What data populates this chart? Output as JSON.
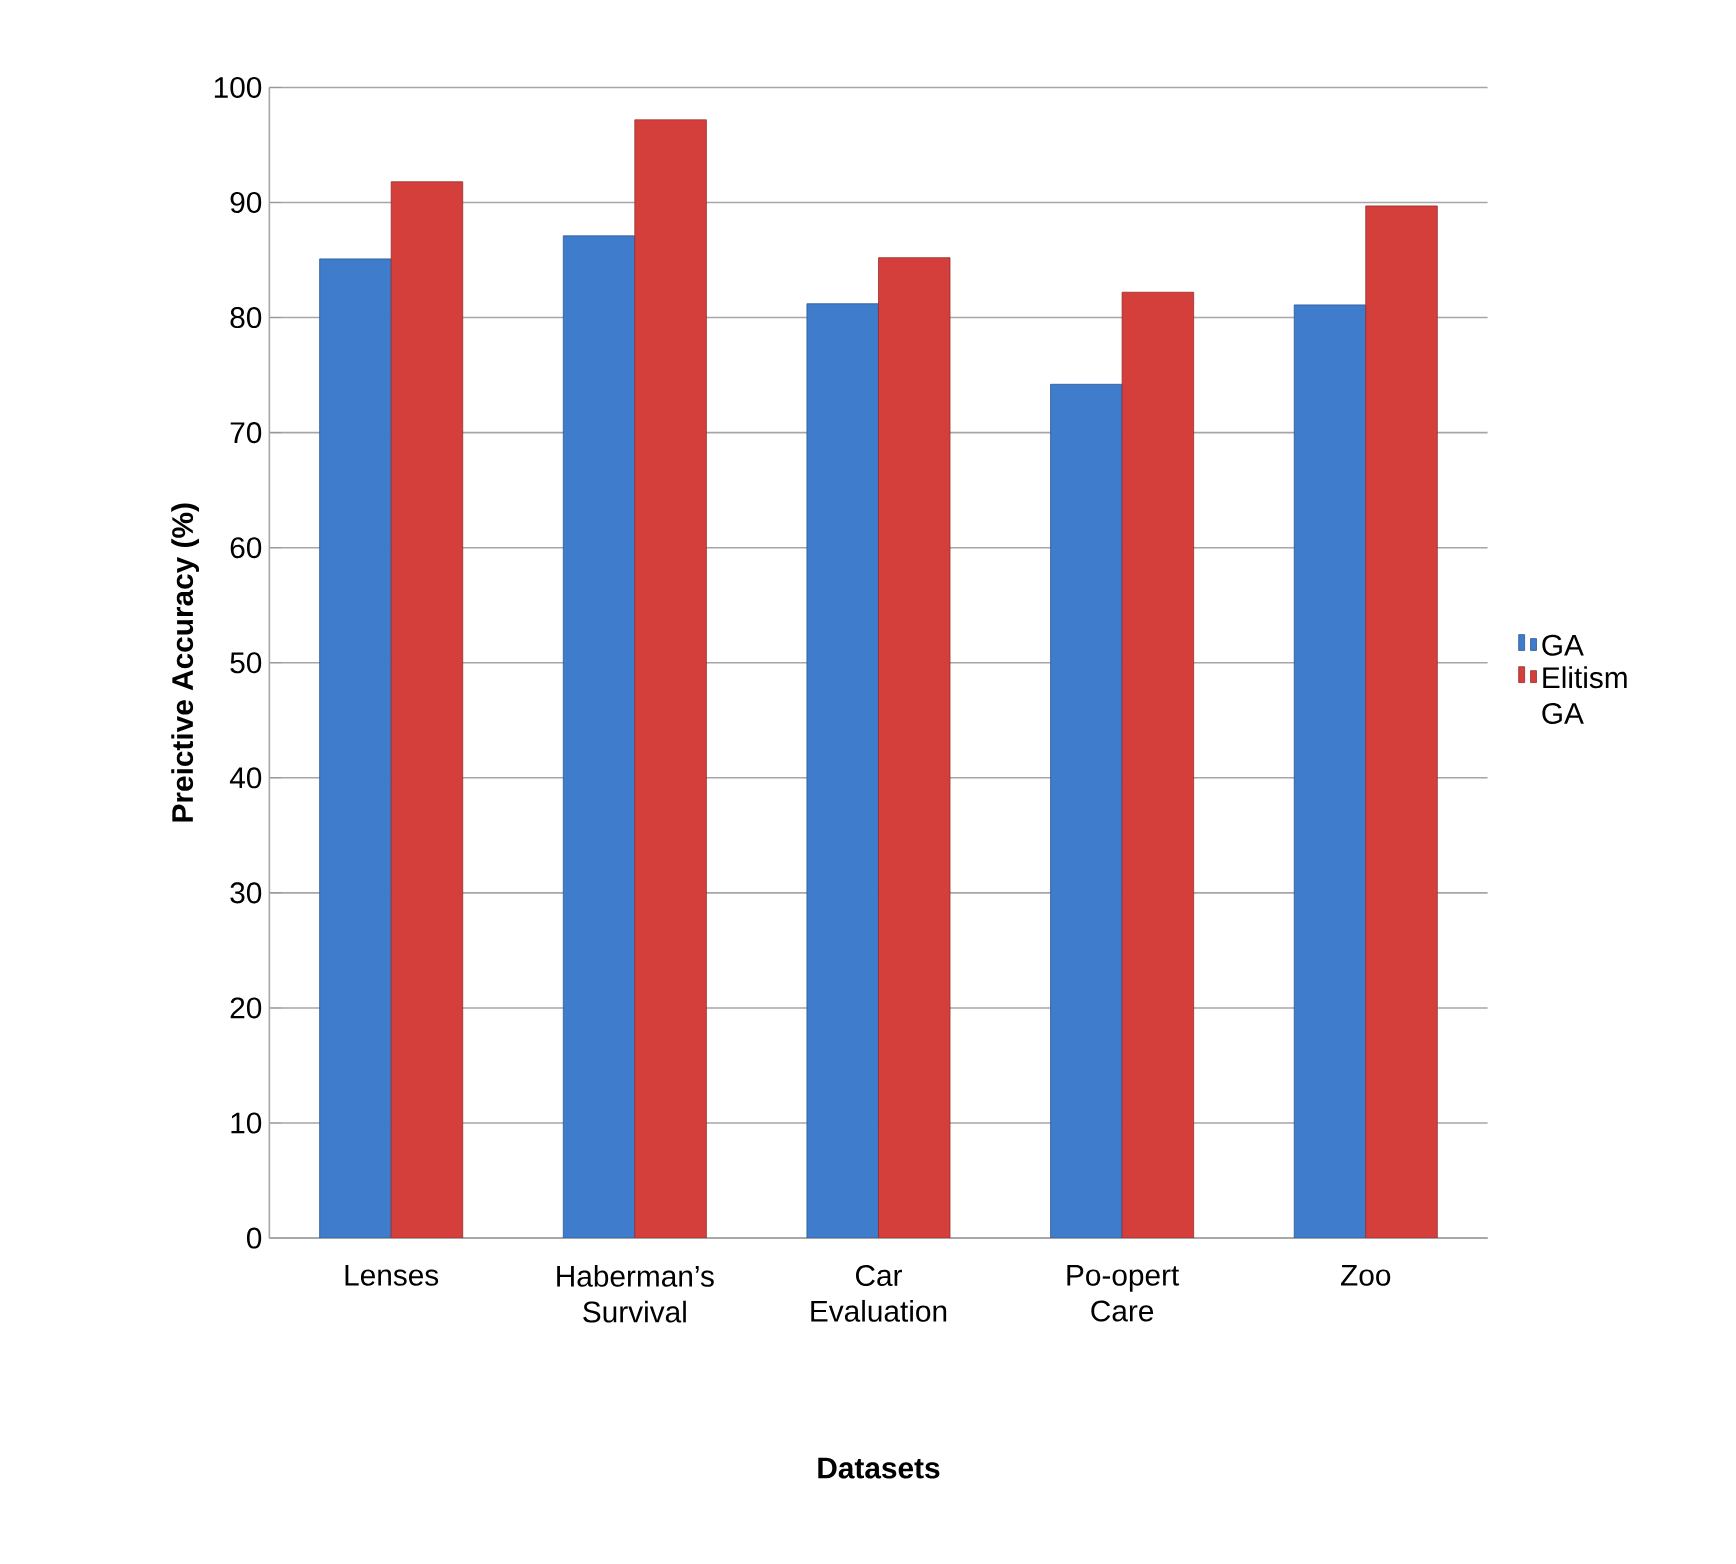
{
  "chart_data": {
    "type": "bar",
    "xlabel": "Datasets",
    "ylabel": "Preictive Accuracy (%)",
    "categories": [
      "Lenses",
      "Haberman’s Survival",
      "Car Evaluation",
      "Po-opert Care",
      "Zoo"
    ],
    "series": [
      {
        "name": "GA",
        "color": "#3f7ccc",
        "values": [
          85.1,
          87.1,
          81.2,
          74.2,
          81.1
        ]
      },
      {
        "name": "Elitism GA",
        "color": "#d43f3c",
        "values": [
          91.8,
          97.2,
          85.2,
          82.2,
          89.7
        ]
      }
    ],
    "ylim": [
      0,
      100
    ],
    "yticks": [
      0,
      10,
      20,
      30,
      40,
      50,
      60,
      70,
      80,
      90,
      100
    ],
    "grid": "y",
    "legend": "right"
  }
}
